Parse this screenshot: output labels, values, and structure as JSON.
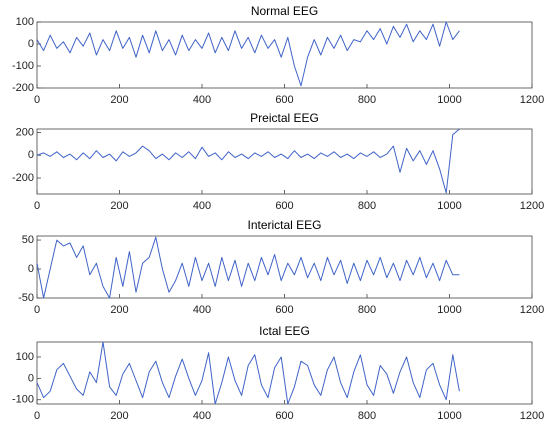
{
  "chart_data": [
    {
      "type": "line",
      "title": "Normal EEG",
      "color": "#3f63c8",
      "x": [
        0,
        16,
        32,
        48,
        64,
        80,
        96,
        112,
        128,
        144,
        160,
        176,
        192,
        208,
        224,
        240,
        256,
        272,
        288,
        304,
        320,
        336,
        352,
        368,
        384,
        400,
        416,
        432,
        448,
        464,
        480,
        496,
        512,
        528,
        544,
        560,
        576,
        592,
        608,
        624,
        640,
        656,
        672,
        688,
        704,
        720,
        736,
        752,
        768,
        784,
        800,
        816,
        832,
        848,
        864,
        880,
        896,
        912,
        928,
        944,
        960,
        976,
        992,
        1008,
        1024
      ],
      "values": [
        20,
        -30,
        40,
        -20,
        10,
        -40,
        30,
        -10,
        50,
        -50,
        20,
        -30,
        60,
        -20,
        30,
        -60,
        40,
        -40,
        60,
        -30,
        20,
        -50,
        40,
        -30,
        20,
        -20,
        50,
        -40,
        30,
        -30,
        60,
        -20,
        30,
        -40,
        40,
        -20,
        20,
        -60,
        30,
        -100,
        -190,
        -60,
        20,
        -50,
        30,
        -20,
        40,
        -30,
        20,
        10,
        60,
        20,
        70,
        0,
        80,
        30,
        90,
        10,
        60,
        20,
        90,
        -10,
        100,
        20,
        60
      ],
      "xlim": [
        0,
        1200
      ],
      "xticks": [
        0,
        200,
        400,
        600,
        800,
        1000,
        1200
      ],
      "ylim": [
        -200,
        100
      ],
      "yticks": [
        -200,
        -100,
        0,
        100
      ]
    },
    {
      "type": "line",
      "title": "Preictal EEG",
      "color": "#3f63c8",
      "x": [
        0,
        16,
        32,
        48,
        64,
        80,
        96,
        112,
        128,
        144,
        160,
        176,
        192,
        208,
        224,
        240,
        256,
        272,
        288,
        304,
        320,
        336,
        352,
        368,
        384,
        400,
        416,
        432,
        448,
        464,
        480,
        496,
        512,
        528,
        544,
        560,
        576,
        592,
        608,
        624,
        640,
        656,
        672,
        688,
        704,
        720,
        736,
        752,
        768,
        784,
        800,
        816,
        832,
        848,
        864,
        880,
        896,
        912,
        928,
        944,
        960,
        976,
        992,
        1008,
        1024
      ],
      "values": [
        0,
        20,
        -10,
        30,
        -20,
        10,
        -40,
        20,
        -30,
        40,
        -20,
        10,
        -50,
        30,
        -10,
        20,
        80,
        40,
        -30,
        10,
        -40,
        20,
        -20,
        30,
        -30,
        70,
        -10,
        20,
        -40,
        30,
        -20,
        10,
        -30,
        20,
        -10,
        30,
        -20,
        10,
        -30,
        40,
        -20,
        10,
        -30,
        20,
        -10,
        30,
        -20,
        10,
        -30,
        20,
        -10,
        30,
        -20,
        10,
        80,
        -150,
        60,
        -50,
        40,
        -80,
        40,
        -120,
        -330,
        180,
        230
      ],
      "xlim": [
        0,
        1200
      ],
      "xticks": [
        0,
        200,
        400,
        600,
        800,
        1000,
        1200
      ],
      "ylim": [
        -340,
        230
      ],
      "yticks": [
        -200,
        0,
        200
      ]
    },
    {
      "type": "line",
      "title": "Interictal EEG",
      "color": "#3f63c8",
      "x": [
        0,
        16,
        32,
        48,
        64,
        80,
        96,
        112,
        128,
        144,
        160,
        176,
        192,
        208,
        224,
        240,
        256,
        272,
        288,
        304,
        320,
        336,
        352,
        368,
        384,
        400,
        416,
        432,
        448,
        464,
        480,
        496,
        512,
        528,
        544,
        560,
        576,
        592,
        608,
        624,
        640,
        656,
        672,
        688,
        704,
        720,
        736,
        752,
        768,
        784,
        800,
        816,
        832,
        848,
        864,
        880,
        896,
        912,
        928,
        944,
        960,
        976,
        992,
        1008,
        1024
      ],
      "values": [
        10,
        -50,
        0,
        50,
        40,
        45,
        20,
        40,
        -10,
        10,
        -30,
        -50,
        20,
        -30,
        30,
        -40,
        10,
        20,
        55,
        0,
        -40,
        -20,
        10,
        -30,
        20,
        -20,
        10,
        -30,
        20,
        -20,
        15,
        -30,
        10,
        -20,
        20,
        -10,
        25,
        -20,
        10,
        -10,
        20,
        -15,
        10,
        -20,
        20,
        -10,
        15,
        -25,
        10,
        -20,
        15,
        -10,
        20,
        -15,
        10,
        -20,
        15,
        -10,
        20,
        -15,
        10,
        -20,
        15,
        -10,
        -10
      ],
      "xlim": [
        0,
        1200
      ],
      "xticks": [
        0,
        200,
        400,
        600,
        800,
        1000,
        1200
      ],
      "ylim": [
        -50,
        57
      ],
      "yticks": [
        -50,
        0,
        50
      ]
    },
    {
      "type": "line",
      "title": "Ictal EEG",
      "color": "#3f63c8",
      "x": [
        0,
        16,
        32,
        48,
        64,
        80,
        96,
        112,
        128,
        144,
        160,
        176,
        192,
        208,
        224,
        240,
        256,
        272,
        288,
        304,
        320,
        336,
        352,
        368,
        384,
        400,
        416,
        432,
        448,
        464,
        480,
        496,
        512,
        528,
        544,
        560,
        576,
        592,
        608,
        624,
        640,
        656,
        672,
        688,
        704,
        720,
        736,
        752,
        768,
        784,
        800,
        816,
        832,
        848,
        864,
        880,
        896,
        912,
        928,
        944,
        960,
        976,
        992,
        1008,
        1024
      ],
      "values": [
        -20,
        -90,
        -60,
        40,
        70,
        10,
        -50,
        -80,
        30,
        -20,
        170,
        -40,
        -80,
        20,
        70,
        -10,
        -90,
        30,
        80,
        -20,
        -90,
        10,
        90,
        0,
        -80,
        -10,
        120,
        -120,
        -20,
        100,
        -10,
        -80,
        60,
        110,
        -30,
        -90,
        50,
        100,
        -120,
        -40,
        80,
        60,
        -30,
        -80,
        40,
        100,
        -20,
        -90,
        30,
        110,
        -30,
        -80,
        60,
        20,
        -70,
        30,
        100,
        -20,
        -90,
        40,
        70,
        -30,
        -100,
        110,
        -60
      ],
      "xlim": [
        0,
        1200
      ],
      "xticks": [
        0,
        200,
        400,
        600,
        800,
        1000,
        1200
      ],
      "ylim": [
        -120,
        170
      ],
      "yticks": [
        -100,
        0,
        100
      ]
    }
  ]
}
